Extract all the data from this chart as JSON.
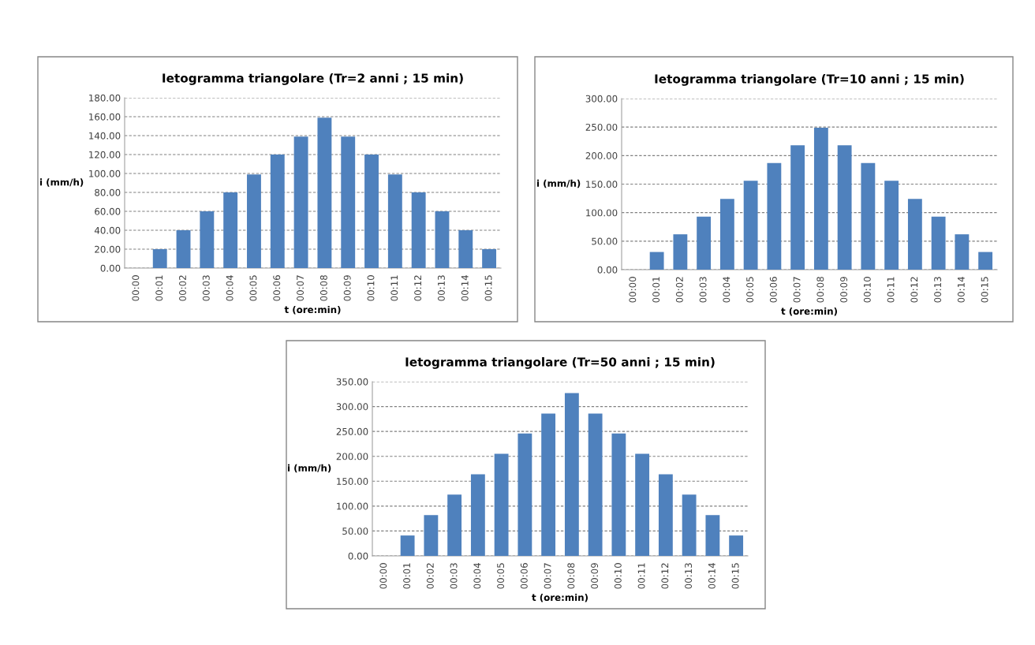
{
  "chart_data": [
    {
      "type": "bar",
      "title": "Ietogramma triangolare (Tr=2 anni ; 15 min)",
      "xlabel": "t (ore:min)",
      "ylabel": "i (mm/h)",
      "categories": [
        "00:00",
        "00:01",
        "00:02",
        "00:03",
        "00:04",
        "00:05",
        "00:06",
        "00:07",
        "00:08",
        "00:09",
        "00:10",
        "00:11",
        "00:12",
        "00:13",
        "00:14",
        "00:15"
      ],
      "values": [
        0,
        20,
        40,
        60,
        80,
        99,
        120,
        139,
        159,
        139,
        120,
        99,
        80,
        60,
        40,
        20
      ],
      "color": "#4f81bd",
      "ylim": [
        0,
        180
      ],
      "yticks": [
        {
          "value": 0,
          "label": "0.00"
        },
        {
          "value": 20,
          "label": "20.00"
        },
        {
          "value": 40,
          "label": "40.00"
        },
        {
          "value": 60,
          "label": "60.00"
        },
        {
          "value": 80,
          "label": "80.00"
        },
        {
          "value": 100,
          "label": "100.00"
        },
        {
          "value": 120,
          "label": "120.00"
        },
        {
          "value": 140,
          "label": "140.00"
        },
        {
          "value": 160,
          "label": "160.00"
        },
        {
          "value": 180,
          "label": "180.00"
        }
      ],
      "grid": "y",
      "legend": false
    },
    {
      "type": "bar",
      "title": "Ietogramma triangolare (Tr=10 anni ; 15 min)",
      "xlabel": "t (ore:min)",
      "ylabel": "i (mm/h)",
      "categories": [
        "00:00",
        "00:01",
        "00:02",
        "00:03",
        "00:04",
        "00:05",
        "00:06",
        "00:07",
        "00:08",
        "00:09",
        "00:10",
        "00:11",
        "00:12",
        "00:13",
        "00:14",
        "00:15"
      ],
      "values": [
        0,
        31,
        62,
        93,
        124,
        156,
        187,
        218,
        249,
        218,
        187,
        156,
        124,
        93,
        62,
        31
      ],
      "color": "#4f81bd",
      "ylim": [
        0,
        300
      ],
      "yticks": [
        {
          "value": 0,
          "label": "0.00"
        },
        {
          "value": 50,
          "label": "50.00"
        },
        {
          "value": 100,
          "label": "100.00"
        },
        {
          "value": 150,
          "label": "150.00"
        },
        {
          "value": 200,
          "label": "200.00"
        },
        {
          "value": 250,
          "label": "250.00"
        },
        {
          "value": 300,
          "label": "300.00"
        }
      ],
      "grid": "y",
      "legend": false
    },
    {
      "type": "bar",
      "title": "Ietogramma triangolare (Tr=50 anni ; 15 min)",
      "xlabel": "t (ore:min)",
      "ylabel": "i (mm/h)",
      "categories": [
        "00:00",
        "00:01",
        "00:02",
        "00:03",
        "00:04",
        "00:05",
        "00:06",
        "00:07",
        "00:08",
        "00:09",
        "00:10",
        "00:11",
        "00:12",
        "00:13",
        "00:14",
        "00:15"
      ],
      "values": [
        0,
        41,
        82,
        123,
        164,
        205,
        246,
        286,
        327,
        286,
        246,
        205,
        164,
        123,
        82,
        41
      ],
      "color": "#4f81bd",
      "ylim": [
        0,
        350
      ],
      "yticks": [
        {
          "value": 0,
          "label": "0.00"
        },
        {
          "value": 50,
          "label": "50.00"
        },
        {
          "value": 100,
          "label": "100.00"
        },
        {
          "value": 150,
          "label": "150.00"
        },
        {
          "value": 200,
          "label": "200.00"
        },
        {
          "value": 250,
          "label": "250.00"
        },
        {
          "value": 300,
          "label": "300.00"
        },
        {
          "value": 350,
          "label": "350.00"
        }
      ],
      "grid": "y",
      "legend": false
    }
  ]
}
